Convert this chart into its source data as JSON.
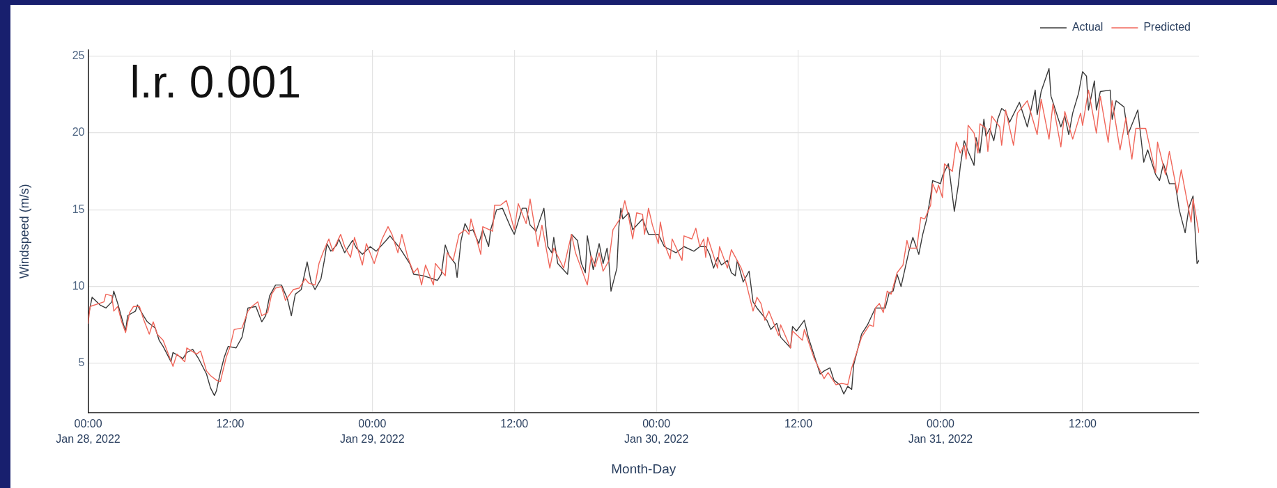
{
  "chart_data": {
    "type": "line",
    "xlabel": "Month-Day",
    "ylabel": "Windspeed (m/s)",
    "annotations": [
      "l.r. 0.001"
    ],
    "xlim": [
      "2022-01-28T00:00",
      "2022-01-31T21:50"
    ],
    "xticks": [
      {
        "value": "2022-01-28T00:00",
        "label": "00:00\nJan 28, 2022"
      },
      {
        "value": "2022-01-28T12:00",
        "label": "12:00"
      },
      {
        "value": "2022-01-29T00:00",
        "label": "00:00\nJan 29, 2022"
      },
      {
        "value": "2022-01-29T12:00",
        "label": "12:00"
      },
      {
        "value": "2022-01-30T00:00",
        "label": "00:00\nJan 30, 2022"
      },
      {
        "value": "2022-01-30T12:00",
        "label": "12:00"
      },
      {
        "value": "2022-01-31T00:00",
        "label": "00:00\nJan 31, 2022"
      },
      {
        "value": "2022-01-31T12:00",
        "label": "12:00"
      }
    ],
    "ylim": [
      1.8,
      25.4
    ],
    "yticks": [
      5,
      10,
      15,
      20,
      25
    ],
    "grid": true,
    "legend": "top right",
    "series": [
      {
        "name": "Actual",
        "color": "#3a3a3a",
        "x": [
          "2022-01-28T00:00",
          "2022-01-28T00:20",
          "2022-01-28T01:00",
          "2022-01-28T01:30",
          "2022-01-28T02:00",
          "2022-01-28T02:10",
          "2022-01-28T02:30",
          "2022-01-28T03:00",
          "2022-01-28T03:10",
          "2022-01-28T03:20",
          "2022-01-28T04:00",
          "2022-01-28T04:10",
          "2022-01-28T04:40",
          "2022-01-28T05:00",
          "2022-01-28T05:20",
          "2022-01-28T05:40",
          "2022-01-28T06:00",
          "2022-01-28T06:20",
          "2022-01-28T07:00",
          "2022-01-28T07:10",
          "2022-01-28T07:50",
          "2022-01-28T08:00",
          "2022-01-28T08:20",
          "2022-01-28T08:50",
          "2022-01-28T09:20",
          "2022-01-28T10:00",
          "2022-01-28T10:20",
          "2022-01-28T10:40",
          "2022-01-28T10:50",
          "2022-01-28T11:10",
          "2022-01-28T11:30",
          "2022-01-28T11:50",
          "2022-01-28T12:30",
          "2022-01-28T13:00",
          "2022-01-28T13:30",
          "2022-01-28T14:10",
          "2022-01-28T14:40",
          "2022-01-28T15:00",
          "2022-01-28T15:20",
          "2022-01-28T15:50",
          "2022-01-28T16:20",
          "2022-01-28T16:50",
          "2022-01-28T17:10",
          "2022-01-28T17:30",
          "2022-01-28T18:00",
          "2022-01-28T18:30",
          "2022-01-28T18:50",
          "2022-01-28T19:10",
          "2022-01-28T19:40",
          "2022-01-28T20:00",
          "2022-01-28T20:10",
          "2022-01-28T20:30",
          "2022-01-28T21:00",
          "2022-01-28T21:10",
          "2022-01-28T21:40",
          "2022-01-28T22:20",
          "2022-01-28T22:40",
          "2022-01-28T23:10",
          "2022-01-28T23:50",
          "2022-01-29T00:20",
          "2022-01-29T01:10",
          "2022-01-29T01:30",
          "2022-01-29T02:20",
          "2022-01-29T03:10",
          "2022-01-29T03:30",
          "2022-01-29T04:20",
          "2022-01-29T05:30",
          "2022-01-29T05:50",
          "2022-01-29T06:10",
          "2022-01-29T06:30",
          "2022-01-29T07:00",
          "2022-01-29T07:10",
          "2022-01-29T07:30",
          "2022-01-29T07:50",
          "2022-01-29T08:10",
          "2022-01-29T08:30",
          "2022-01-29T09:00",
          "2022-01-29T09:20",
          "2022-01-29T09:50",
          "2022-01-29T10:00",
          "2022-01-29T10:30",
          "2022-01-29T11:00",
          "2022-01-29T11:40",
          "2022-01-29T12:00",
          "2022-01-29T12:40",
          "2022-01-29T13:00",
          "2022-01-29T13:20",
          "2022-01-29T13:50",
          "2022-01-29T14:30",
          "2022-01-29T14:50",
          "2022-01-29T15:10",
          "2022-01-29T15:20",
          "2022-01-29T15:40",
          "2022-01-29T16:30",
          "2022-01-29T16:50",
          "2022-01-29T17:20",
          "2022-01-29T17:40",
          "2022-01-29T18:00",
          "2022-01-29T18:10",
          "2022-01-29T18:40",
          "2022-01-29T19:10",
          "2022-01-29T19:30",
          "2022-01-29T19:50",
          "2022-01-29T20:00",
          "2022-01-29T20:10",
          "2022-01-29T20:40",
          "2022-01-29T20:50",
          "2022-01-29T21:00",
          "2022-01-29T21:10",
          "2022-01-29T21:40",
          "2022-01-29T22:00",
          "2022-01-29T22:50",
          "2022-01-29T23:20",
          "2022-01-30T00:10",
          "2022-01-30T00:40",
          "2022-01-30T01:40",
          "2022-01-30T02:20",
          "2022-01-30T03:10",
          "2022-01-30T03:40",
          "2022-01-30T04:10",
          "2022-01-30T04:30",
          "2022-01-30T04:50",
          "2022-01-30T05:10",
          "2022-01-30T05:30",
          "2022-01-30T06:00",
          "2022-01-30T06:20",
          "2022-01-30T06:40",
          "2022-01-30T06:50",
          "2022-01-30T07:20",
          "2022-01-30T07:50",
          "2022-01-30T08:10",
          "2022-01-30T08:30",
          "2022-01-30T09:20",
          "2022-01-30T09:40",
          "2022-01-30T10:10",
          "2022-01-30T10:30",
          "2022-01-30T11:20",
          "2022-01-30T11:30",
          "2022-01-30T11:50",
          "2022-01-30T12:30",
          "2022-01-30T12:50",
          "2022-01-30T13:10",
          "2022-01-30T13:30",
          "2022-01-30T13:50",
          "2022-01-30T14:10",
          "2022-01-30T14:40",
          "2022-01-30T15:00",
          "2022-01-30T15:30",
          "2022-01-30T15:50",
          "2022-01-30T16:10",
          "2022-01-30T16:30",
          "2022-01-30T16:40",
          "2022-01-30T17:20",
          "2022-01-30T17:50",
          "2022-01-30T18:30",
          "2022-01-30T19:20",
          "2022-01-30T19:40",
          "2022-01-30T20:00",
          "2022-01-30T20:20",
          "2022-01-30T20:40",
          "2022-01-30T21:20",
          "2022-01-30T21:40",
          "2022-01-30T22:10",
          "2022-01-30T22:30",
          "2022-01-30T22:50",
          "2022-01-30T23:10",
          "2022-01-30T23:20",
          "2022-01-31T00:00",
          "2022-01-31T00:10",
          "2022-01-31T00:40",
          "2022-01-31T00:50",
          "2022-01-31T01:10",
          "2022-01-31T01:30",
          "2022-01-31T01:40",
          "2022-01-31T02:00",
          "2022-01-31T02:20",
          "2022-01-31T02:50",
          "2022-01-31T03:00",
          "2022-01-31T03:20",
          "2022-01-31T03:40",
          "2022-01-31T03:50",
          "2022-01-31T04:10",
          "2022-01-31T04:30",
          "2022-01-31T04:50",
          "2022-01-31T05:10",
          "2022-01-31T05:30",
          "2022-01-31T05:50",
          "2022-01-31T06:40",
          "2022-01-31T07:20",
          "2022-01-31T08:00",
          "2022-01-31T08:10",
          "2022-01-31T08:30",
          "2022-01-31T09:10",
          "2022-01-31T09:20",
          "2022-01-31T10:10",
          "2022-01-31T10:30",
          "2022-01-31T10:50",
          "2022-01-31T11:10",
          "2022-01-31T11:40",
          "2022-01-31T12:00",
          "2022-01-31T12:20",
          "2022-01-31T12:30",
          "2022-01-31T13:00",
          "2022-01-31T13:10",
          "2022-01-31T13:30",
          "2022-01-31T14:20",
          "2022-01-31T14:30",
          "2022-01-31T14:50",
          "2022-01-31T15:30",
          "2022-01-31T15:50",
          "2022-01-31T16:40",
          "2022-01-31T17:10",
          "2022-01-31T17:30",
          "2022-01-31T18:10",
          "2022-01-31T18:30",
          "2022-01-31T18:50",
          "2022-01-31T19:20",
          "2022-01-31T19:50",
          "2022-01-31T20:10",
          "2022-01-31T20:40",
          "2022-01-31T21:00",
          "2022-01-31T21:20",
          "2022-01-31T21:40",
          "2022-01-31T21:50"
        ],
        "values": [
          8.0,
          9.3,
          8.8,
          8.6,
          9.0,
          9.7,
          8.9,
          7.5,
          7.1,
          8.1,
          8.4,
          8.8,
          8.1,
          7.7,
          7.5,
          7.3,
          6.5,
          6.1,
          5.1,
          5.7,
          5.4,
          5.3,
          5.7,
          5.9,
          5.3,
          4.3,
          3.4,
          2.9,
          3.2,
          4.4,
          5.4,
          6.1,
          6.0,
          6.7,
          8.6,
          8.7,
          7.7,
          8.1,
          9.4,
          10.1,
          10.1,
          9.2,
          8.1,
          9.5,
          9.8,
          11.6,
          10.3,
          9.8,
          10.5,
          11.9,
          12.8,
          12.3,
          12.7,
          13.1,
          12.2,
          13.0,
          12.5,
          12.1,
          12.6,
          12.3,
          13.0,
          13.3,
          12.5,
          11.5,
          10.8,
          10.7,
          10.4,
          10.8,
          12.7,
          12.0,
          11.5,
          10.6,
          13.0,
          14.1,
          13.6,
          13.7,
          12.8,
          13.7,
          12.6,
          13.7,
          15.0,
          15.1,
          13.9,
          13.4,
          15.1,
          15.1,
          14.0,
          13.6,
          15.1,
          12.6,
          12.2,
          13.2,
          11.5,
          10.8,
          13.4,
          13.0,
          11.5,
          10.9,
          13.3,
          11.1,
          12.8,
          11.5,
          12.5,
          11.5,
          9.7,
          11.2,
          13.9,
          15.1,
          14.4,
          14.8,
          13.7,
          14.4,
          13.4,
          13.4,
          12.6,
          12.2,
          12.6,
          12.3,
          12.6,
          12.6,
          12.1,
          11.2,
          11.9,
          11.4,
          11.7,
          10.9,
          10.7,
          11.7,
          10.3,
          11.0,
          9.0,
          8.6,
          7.8,
          7.2,
          7.6,
          6.7,
          6.0,
          7.4,
          7.1,
          7.8,
          6.7,
          5.9,
          5.1,
          4.3,
          4.5,
          4.7,
          3.9,
          3.6,
          3.0,
          3.5,
          3.3,
          4.9,
          6.9,
          7.5,
          8.6,
          8.6,
          9.6,
          9.7,
          10.8,
          10.0,
          12.3,
          13.2,
          12.1,
          13.4,
          14.4,
          15.9,
          16.9,
          16.7,
          17.2,
          18.0,
          17.0,
          14.9,
          16.6,
          17.8,
          19.5,
          18.8,
          17.9,
          19.7,
          18.7,
          20.9,
          19.8,
          20.3,
          19.5,
          20.9,
          21.6,
          21.4,
          20.7,
          22.0,
          20.4,
          22.8,
          21.2,
          22.7,
          24.2,
          22.4,
          20.4,
          21.1,
          19.9,
          21.3,
          22.6,
          24.0,
          23.7,
          21.5,
          23.4,
          21.5,
          22.7,
          22.8,
          20.9,
          22.1,
          21.7,
          19.9,
          21.5,
          18.1,
          18.9,
          17.3,
          16.9,
          18.0,
          16.7,
          16.7,
          15.0,
          13.5,
          15.2,
          15.9,
          11.5,
          11.7
        ]
      },
      {
        "name": "Predicted",
        "color": "#f0665a",
        "x": [
          "2022-01-28T00:00",
          "2022-01-28T00:10",
          "2022-01-28T01:20",
          "2022-01-28T01:30",
          "2022-01-28T02:00",
          "2022-01-28T02:10",
          "2022-01-28T02:30",
          "2022-01-28T02:50",
          "2022-01-28T03:10",
          "2022-01-28T03:30",
          "2022-01-28T03:50",
          "2022-01-28T04:20",
          "2022-01-28T04:40",
          "2022-01-28T05:10",
          "2022-01-28T05:30",
          "2022-01-28T05:50",
          "2022-01-28T06:20",
          "2022-01-28T07:10",
          "2022-01-28T07:30",
          "2022-01-28T08:10",
          "2022-01-28T08:20",
          "2022-01-28T09:10",
          "2022-01-28T09:30",
          "2022-01-28T10:00",
          "2022-01-28T10:20",
          "2022-01-28T10:50",
          "2022-01-28T11:10",
          "2022-01-28T11:40",
          "2022-01-28T12:00",
          "2022-01-28T12:20",
          "2022-01-28T13:00",
          "2022-01-28T13:30",
          "2022-01-28T13:50",
          "2022-01-28T14:20",
          "2022-01-28T14:40",
          "2022-01-28T15:10",
          "2022-01-28T15:30",
          "2022-01-28T15:50",
          "2022-01-28T16:20",
          "2022-01-28T16:40",
          "2022-01-28T17:20",
          "2022-01-28T17:50",
          "2022-01-28T18:20",
          "2022-01-28T18:40",
          "2022-01-28T19:10",
          "2022-01-28T19:30",
          "2022-01-28T19:50",
          "2022-01-28T20:20",
          "2022-01-28T20:40",
          "2022-01-28T21:20",
          "2022-01-28T21:40",
          "2022-01-28T22:10",
          "2022-01-28T22:30",
          "2022-01-28T23:10",
          "2022-01-28T23:30",
          "2022-01-29T00:10",
          "2022-01-29T00:50",
          "2022-01-29T01:20",
          "2022-01-29T01:40",
          "2022-01-29T02:10",
          "2022-01-29T02:30",
          "2022-01-29T03:00",
          "2022-01-29T03:30",
          "2022-01-29T03:50",
          "2022-01-29T04:10",
          "2022-01-29T04:30",
          "2022-01-29T05:10",
          "2022-01-29T05:20",
          "2022-01-29T06:10",
          "2022-01-29T06:20",
          "2022-01-29T06:50",
          "2022-01-29T07:20",
          "2022-01-29T07:50",
          "2022-01-29T08:10",
          "2022-01-29T08:20",
          "2022-01-29T09:10",
          "2022-01-29T09:20",
          "2022-01-29T10:10",
          "2022-01-29T10:20",
          "2022-01-29T10:50",
          "2022-01-29T11:20",
          "2022-01-29T12:00",
          "2022-01-29T12:20",
          "2022-01-29T13:00",
          "2022-01-29T13:20",
          "2022-01-29T14:00",
          "2022-01-29T14:20",
          "2022-01-29T15:00",
          "2022-01-29T15:20",
          "2022-01-29T16:10",
          "2022-01-29T16:50",
          "2022-01-29T17:10",
          "2022-01-29T18:10",
          "2022-01-29T18:30",
          "2022-01-29T18:50",
          "2022-01-29T19:10",
          "2022-01-29T19:30",
          "2022-01-29T20:00",
          "2022-01-29T20:20",
          "2022-01-29T21:00",
          "2022-01-29T21:20",
          "2022-01-29T21:40",
          "2022-01-29T22:00",
          "2022-01-29T22:20",
          "2022-01-29T22:50",
          "2022-01-29T23:00",
          "2022-01-29T23:20",
          "2022-01-29T23:40",
          "2022-01-30T00:10",
          "2022-01-30T00:20",
          "2022-01-30T00:40",
          "2022-01-30T01:10",
          "2022-01-30T01:20",
          "2022-01-30T02:10",
          "2022-01-30T02:20",
          "2022-01-30T03:00",
          "2022-01-30T03:20",
          "2022-01-30T03:40",
          "2022-01-30T04:00",
          "2022-01-30T04:10",
          "2022-01-30T04:20",
          "2022-01-30T05:10",
          "2022-01-30T05:20",
          "2022-01-30T06:00",
          "2022-01-30T06:20",
          "2022-01-30T07:10",
          "2022-01-30T07:30",
          "2022-01-30T08:10",
          "2022-01-30T08:30",
          "2022-01-30T08:50",
          "2022-01-30T09:10",
          "2022-01-30T09:30",
          "2022-01-30T10:20",
          "2022-01-30T10:30",
          "2022-01-30T11:20",
          "2022-01-30T11:30",
          "2022-01-30T12:20",
          "2022-01-30T12:30",
          "2022-01-30T13:20",
          "2022-01-30T14:10",
          "2022-01-30T14:30",
          "2022-01-30T15:10",
          "2022-01-30T15:40",
          "2022-01-30T16:10",
          "2022-01-30T16:30",
          "2022-01-30T17:20",
          "2022-01-30T18:00",
          "2022-01-30T18:20",
          "2022-01-30T18:30",
          "2022-01-30T18:50",
          "2022-01-30T19:10",
          "2022-01-30T19:30",
          "2022-01-30T19:50",
          "2022-01-30T20:20",
          "2022-01-30T20:50",
          "2022-01-30T21:10",
          "2022-01-30T21:20",
          "2022-01-30T22:00",
          "2022-01-30T22:20",
          "2022-01-30T22:40",
          "2022-01-30T23:10",
          "2022-01-30T23:20",
          "2022-01-30T23:40",
          "2022-01-30T23:50",
          "2022-01-31T00:10",
          "2022-01-31T00:20",
          "2022-01-31T01:00",
          "2022-01-31T01:20",
          "2022-01-31T01:40",
          "2022-01-31T02:00",
          "2022-01-31T02:10",
          "2022-01-31T02:20",
          "2022-01-31T02:50",
          "2022-01-31T03:10",
          "2022-01-31T03:20",
          "2022-01-31T03:50",
          "2022-01-31T04:00",
          "2022-01-31T04:20",
          "2022-01-31T05:00",
          "2022-01-31T05:10",
          "2022-01-31T05:30",
          "2022-01-31T06:10",
          "2022-01-31T06:30",
          "2022-01-31T07:20",
          "2022-01-31T08:10",
          "2022-01-31T08:30",
          "2022-01-31T09:10",
          "2022-01-31T09:30",
          "2022-01-31T10:10",
          "2022-01-31T10:30",
          "2022-01-31T11:10",
          "2022-01-31T11:50",
          "2022-01-31T12:00",
          "2022-01-31T12:30",
          "2022-01-31T13:10",
          "2022-01-31T13:30",
          "2022-01-31T14:10",
          "2022-01-31T14:30",
          "2022-01-31T15:10",
          "2022-01-31T15:40",
          "2022-01-31T16:10",
          "2022-01-31T16:30",
          "2022-01-31T17:20",
          "2022-01-31T18:10",
          "2022-01-31T18:20",
          "2022-01-31T19:00",
          "2022-01-31T19:20",
          "2022-01-31T20:00",
          "2022-01-31T20:20",
          "2022-01-31T21:10",
          "2022-01-31T21:20",
          "2022-01-31T21:50"
        ],
        "values": [
          7.6,
          8.7,
          9.0,
          9.5,
          9.4,
          8.4,
          8.7,
          7.7,
          7.0,
          8.3,
          8.7,
          8.7,
          7.9,
          6.9,
          7.7,
          6.9,
          6.5,
          4.8,
          5.6,
          5.1,
          6.0,
          5.6,
          5.8,
          4.5,
          4.2,
          3.9,
          3.8,
          5.4,
          6.1,
          7.2,
          7.3,
          8.4,
          8.7,
          9.0,
          8.1,
          8.3,
          9.5,
          9.9,
          10.0,
          9.1,
          9.8,
          9.9,
          10.5,
          10.2,
          10.1,
          11.5,
          12.2,
          13.1,
          12.3,
          13.4,
          12.6,
          11.9,
          13.2,
          11.4,
          12.8,
          11.5,
          13.1,
          13.9,
          13.4,
          12.2,
          13.4,
          11.9,
          10.9,
          11.2,
          10.1,
          11.4,
          10.1,
          11.5,
          10.7,
          12.2,
          11.7,
          13.4,
          13.7,
          13.4,
          14.4,
          12.1,
          13.9,
          13.6,
          15.3,
          15.3,
          15.6,
          13.7,
          15.4,
          14.1,
          15.7,
          12.6,
          14.0,
          11.2,
          12.5,
          11.2,
          13.4,
          12.2,
          10.1,
          12.0,
          11.3,
          12.2,
          11.0,
          11.7,
          13.7,
          14.5,
          15.6,
          14.5,
          13.1,
          14.8,
          14.7,
          13.4,
          15.1,
          14.0,
          12.8,
          14.2,
          12.8,
          11.8,
          13.1,
          11.7,
          13.3,
          13.1,
          13.8,
          12.6,
          13.1,
          11.9,
          13.2,
          11.2,
          12.6,
          11.2,
          12.4,
          11.2,
          10.5,
          8.4,
          9.3,
          8.9,
          7.8,
          8.4,
          6.8,
          7.5,
          6.0,
          7.1,
          6.5,
          7.2,
          5.3,
          4.0,
          4.4,
          3.6,
          3.7,
          3.6,
          4.7,
          6.7,
          7.5,
          7.4,
          8.6,
          8.9,
          8.3,
          9.7,
          9.5,
          10.9,
          11.4,
          13.0,
          12.5,
          12.5,
          14.5,
          14.4,
          15.3,
          16.7,
          16.1,
          16.6,
          15.8,
          18.0,
          17.5,
          19.4,
          18.7,
          19.2,
          18.3,
          20.5,
          20.0,
          18.7,
          20.6,
          20.3,
          18.8,
          21.1,
          20.4,
          19.2,
          21.5,
          19.2,
          21.3,
          22.1,
          19.9,
          22.2,
          19.6,
          21.9,
          19.1,
          21.4,
          19.6,
          21.3,
          20.5,
          22.8,
          20.0,
          22.4,
          19.4,
          22.1,
          18.9,
          21.0,
          18.3,
          20.3,
          20.3,
          17.4,
          19.4,
          17.3,
          18.8,
          16.1,
          17.6,
          14.2,
          15.7,
          13.5
        ]
      }
    ]
  }
}
